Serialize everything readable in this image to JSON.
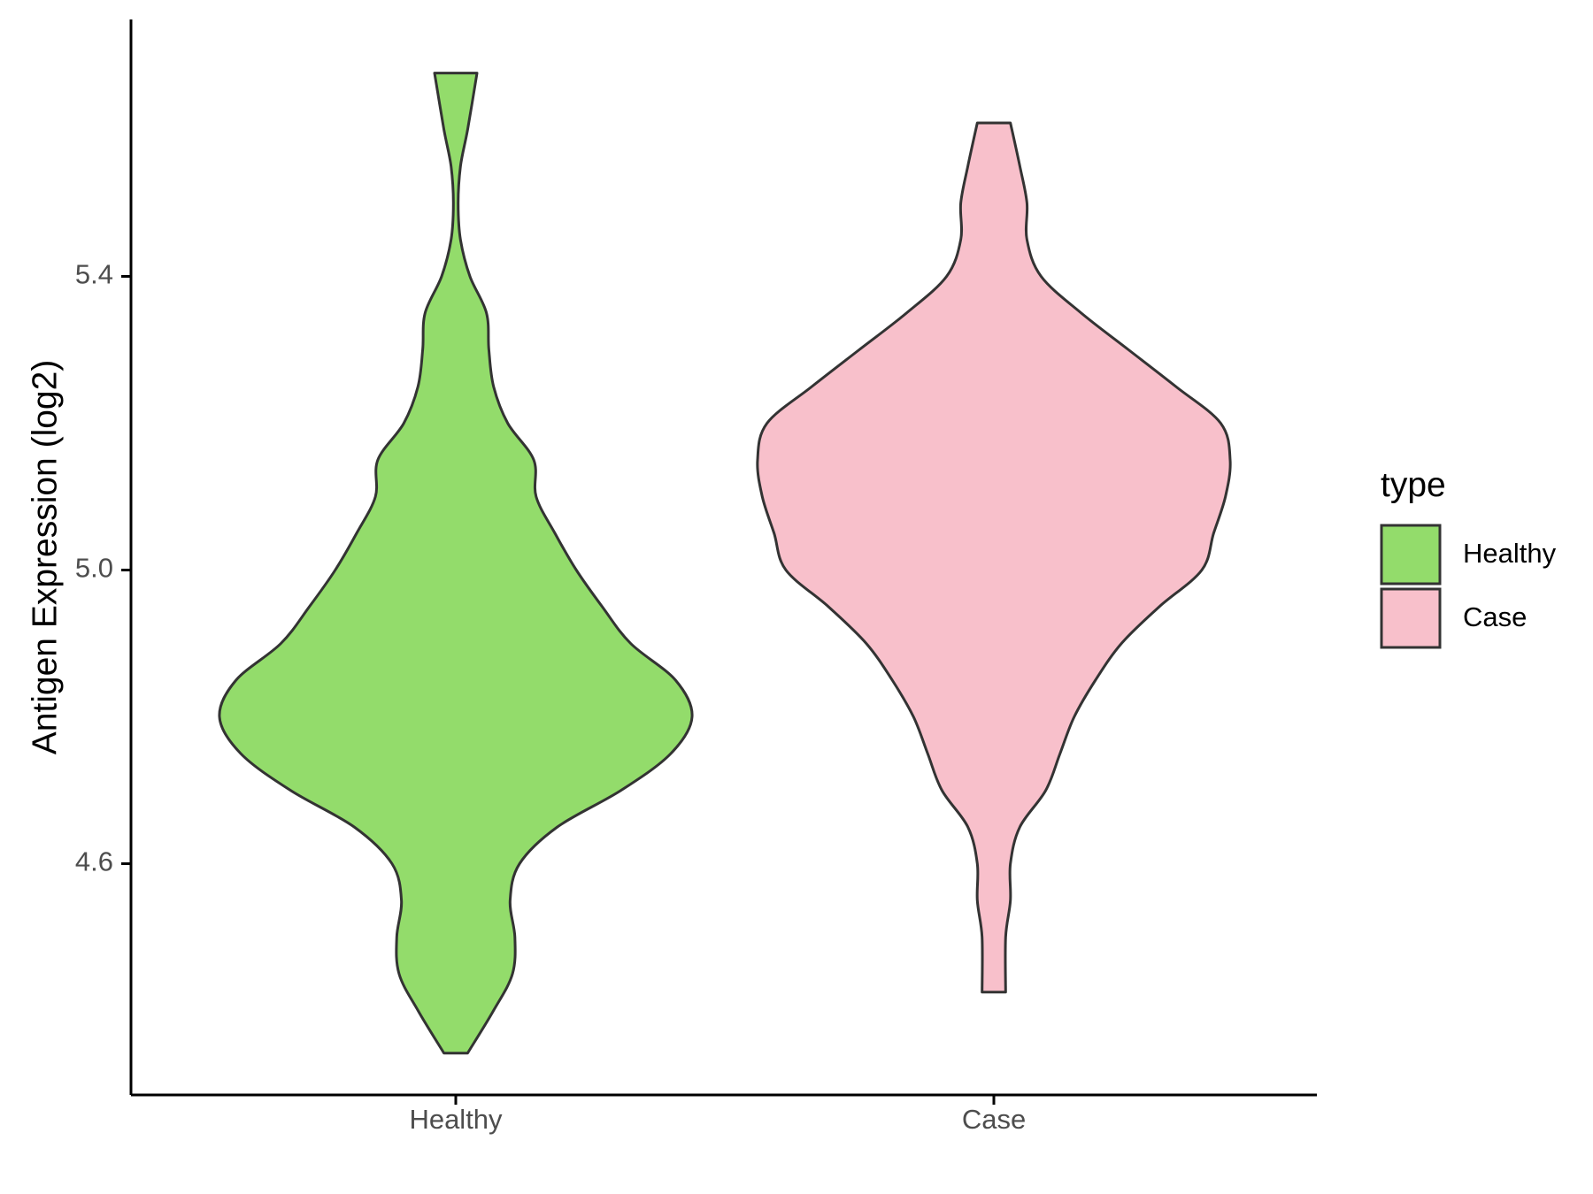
{
  "chart_data": {
    "type": "violin",
    "title": "",
    "xlabel": "",
    "ylabel": "Antigen Expression (log2)",
    "categories": [
      "Healthy",
      "Case"
    ],
    "y_ticks": [
      4.6,
      5.0,
      5.4
    ],
    "y_tick_labels": [
      "4.6",
      "5.0",
      "5.4"
    ],
    "ylim": [
      4.285,
      5.75
    ],
    "grid": false,
    "legend": {
      "title": "type",
      "position": "right",
      "entries": [
        {
          "label": "Healthy",
          "color": "#93dc6b"
        },
        {
          "label": "Case",
          "color": "#f8c0cb"
        }
      ]
    },
    "series": [
      {
        "name": "Healthy",
        "color": "#93dc6b",
        "y_min": 4.342,
        "y_max": 5.677,
        "density_profile": [
          [
            4.342,
            0.05
          ],
          [
            4.4,
            0.16
          ],
          [
            4.45,
            0.24
          ],
          [
            4.5,
            0.25
          ],
          [
            4.55,
            0.23
          ],
          [
            4.6,
            0.27
          ],
          [
            4.65,
            0.43
          ],
          [
            4.7,
            0.7
          ],
          [
            4.75,
            0.91
          ],
          [
            4.8,
            1.0
          ],
          [
            4.85,
            0.93
          ],
          [
            4.9,
            0.74
          ],
          [
            4.95,
            0.62
          ],
          [
            5.0,
            0.51
          ],
          [
            5.05,
            0.42
          ],
          [
            5.1,
            0.34
          ],
          [
            5.15,
            0.33
          ],
          [
            5.2,
            0.22
          ],
          [
            5.25,
            0.16
          ],
          [
            5.3,
            0.14
          ],
          [
            5.35,
            0.13
          ],
          [
            5.4,
            0.06
          ],
          [
            5.45,
            0.02
          ],
          [
            5.5,
            0.01
          ],
          [
            5.55,
            0.02
          ],
          [
            5.6,
            0.05
          ],
          [
            5.677,
            0.09
          ]
        ]
      },
      {
        "name": "Case",
        "color": "#f8c0cb",
        "y_min": 4.425,
        "y_max": 5.609,
        "density_profile": [
          [
            4.425,
            0.05
          ],
          [
            4.5,
            0.05
          ],
          [
            4.55,
            0.07
          ],
          [
            4.6,
            0.07
          ],
          [
            4.65,
            0.11
          ],
          [
            4.7,
            0.22
          ],
          [
            4.75,
            0.28
          ],
          [
            4.8,
            0.34
          ],
          [
            4.85,
            0.43
          ],
          [
            4.9,
            0.54
          ],
          [
            4.95,
            0.7
          ],
          [
            5.0,
            0.88
          ],
          [
            5.05,
            0.93
          ],
          [
            5.1,
            0.98
          ],
          [
            5.15,
            1.0
          ],
          [
            5.2,
            0.96
          ],
          [
            5.25,
            0.77
          ],
          [
            5.3,
            0.57
          ],
          [
            5.35,
            0.37
          ],
          [
            5.4,
            0.2
          ],
          [
            5.45,
            0.14
          ],
          [
            5.5,
            0.14
          ],
          [
            5.55,
            0.11
          ],
          [
            5.609,
            0.07
          ]
        ]
      }
    ]
  }
}
